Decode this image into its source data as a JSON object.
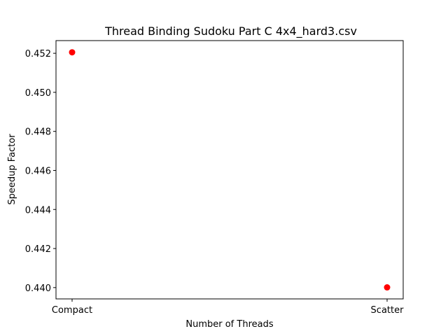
{
  "chart_data": {
    "type": "scatter",
    "title": "Thread Binding Sudoku Part C 4x4_hard3.csv",
    "xlabel": "Number of Threads",
    "ylabel": "Speedup Factor",
    "categories": [
      "Compact",
      "Scatter"
    ],
    "series": [
      {
        "values": [
          0.45205,
          0.44001
        ],
        "color": "#ff0000"
      }
    ],
    "ylim": [
      0.43942,
      0.45265
    ],
    "yticks": [
      "0.440",
      "0.442",
      "0.444",
      "0.446",
      "0.448",
      "0.450",
      "0.452"
    ],
    "grid": false,
    "legend": "none"
  }
}
